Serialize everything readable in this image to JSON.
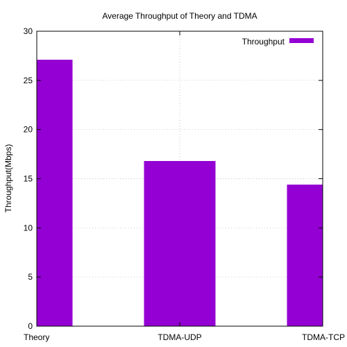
{
  "chart_data": {
    "type": "bar",
    "title": "Average Throughput of Theory and TDMA",
    "xlabel": "",
    "ylabel": "Throughput(Mbps)",
    "categories": [
      "Theory",
      "TDMA-UDP",
      "TDMA-TCP"
    ],
    "series": [
      {
        "name": "Throughput",
        "values": [
          27.1,
          16.8,
          14.4
        ],
        "color": "#9400d3"
      }
    ],
    "ylim": [
      0,
      30
    ],
    "yticks": [
      "0",
      "5",
      "10",
      "15",
      "20",
      "25",
      "30"
    ],
    "grid": true,
    "legend_position": "top-right"
  }
}
